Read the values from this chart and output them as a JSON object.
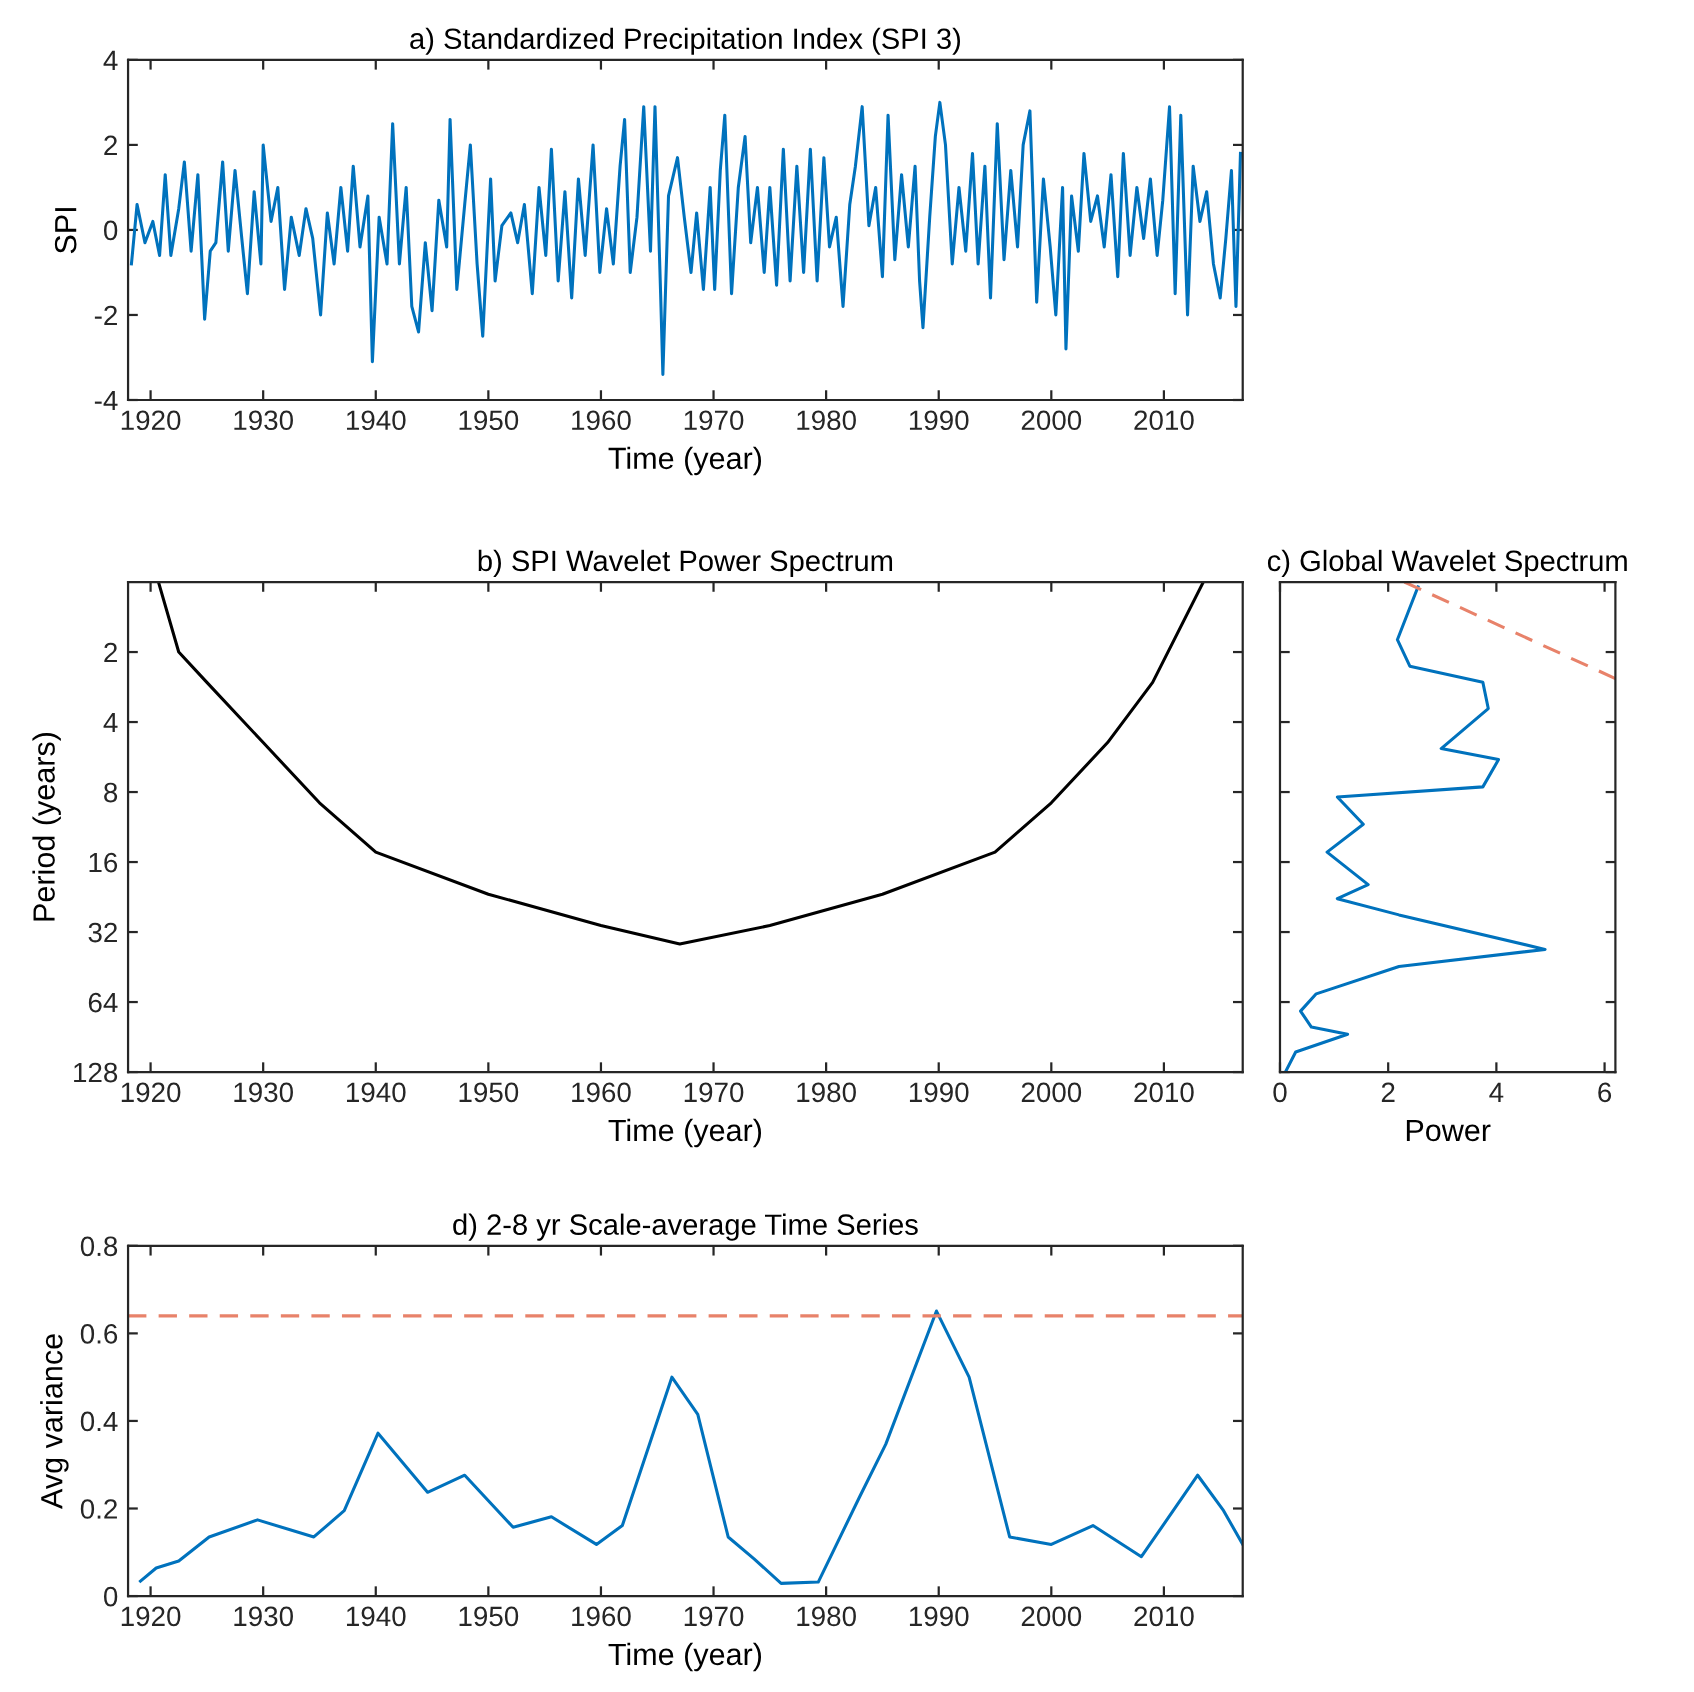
{
  "chart_data": [
    {
      "type": "line",
      "title": "a) Standardized Precipitation Index (SPI 3)",
      "xlabel": "Time (year)",
      "ylabel": "SPI",
      "xlim": [
        1918,
        2017
      ],
      "xticks": [
        1920,
        1930,
        1940,
        1950,
        1960,
        1970,
        1980,
        1990,
        2000,
        2010
      ],
      "ylim": [
        -4,
        4
      ],
      "yticks": [
        -4,
        -2,
        0,
        2,
        4
      ],
      "series": [
        {
          "color": "#0072bd",
          "x": [
            1918.3,
            1918.8,
            1919.5,
            1920.2,
            1920.8,
            1921.3,
            1921.8,
            1922.5,
            1923,
            1923.6,
            1924.2,
            1924.8,
            1925.3,
            1925.8,
            1926.4,
            1926.9,
            1927.5,
            1928.1,
            1928.6,
            1929.2,
            1929.8,
            1930,
            1930.7,
            1931.3,
            1931.9,
            1932.5,
            1933.2,
            1933.8,
            1934.4,
            1935.1,
            1935.7,
            1936.3,
            1936.9,
            1937.5,
            1938,
            1938.6,
            1939.3,
            1939.7,
            1940.3,
            1941,
            1941.5,
            1942.1,
            1942.7,
            1943.2,
            1943.8,
            1944.4,
            1945,
            1945.6,
            1946.3,
            1946.6,
            1947.2,
            1947.9,
            1948.4,
            1949,
            1949.5,
            1950.2,
            1950.6,
            1951.2,
            1952,
            1952.6,
            1953.2,
            1953.9,
            1954.5,
            1955.1,
            1955.6,
            1956.2,
            1956.8,
            1957.4,
            1958,
            1958.6,
            1959.3,
            1959.9,
            1960.5,
            1961.1,
            1961.7,
            1962.1,
            1962.6,
            1963.2,
            1963.8,
            1964.4,
            1964.8,
            1965.3,
            1965.5,
            1966,
            1966.8,
            1967.4,
            1968,
            1968.5,
            1969.1,
            1969.7,
            1970.1,
            1970.6,
            1971,
            1971.6,
            1972.2,
            1972.8,
            1973.3,
            1973.9,
            1974.5,
            1975,
            1975.6,
            1976.2,
            1976.8,
            1977.4,
            1978,
            1978.6,
            1979.2,
            1979.8,
            1980.3,
            1980.9,
            1981.5,
            1982.1,
            1982.6,
            1983.2,
            1983.8,
            1984.4,
            1985,
            1985.5,
            1986.1,
            1986.7,
            1987.3,
            1987.9,
            1988.3,
            1988.6,
            1989.2,
            1989.7,
            1990.1,
            1990.6,
            1991.2,
            1991.8,
            1992.4,
            1993,
            1993.5,
            1994.1,
            1994.6,
            1995.2,
            1995.8,
            1996.4,
            1997,
            1997.5,
            1998.1,
            1998.7,
            1999.3,
            1999.9,
            2000.4,
            2001,
            2001.3,
            2001.8,
            2002.4,
            2002.9,
            2003.5,
            2004.1,
            2004.7,
            2005.3,
            2005.9,
            2006.4,
            2007,
            2007.6,
            2008.2,
            2008.8,
            2009.4,
            2009.9,
            2010.5,
            2011,
            2011.5,
            2012.1,
            2012.6,
            2013.2,
            2013.8,
            2014.4,
            2015,
            2015.5,
            2016,
            2016.4,
            2016.8
          ],
          "values": [
            -0.8,
            0.6,
            -0.3,
            0.2,
            -0.6,
            1.3,
            -0.6,
            0.5,
            1.6,
            -0.5,
            1.3,
            -2.1,
            -0.5,
            -0.3,
            1.6,
            -0.5,
            1.4,
            -0.2,
            -1.5,
            0.9,
            -0.8,
            2.0,
            0.2,
            1.0,
            -1.4,
            0.3,
            -0.6,
            0.5,
            -0.2,
            -2.0,
            0.4,
            -0.8,
            1.0,
            -0.5,
            1.5,
            -0.4,
            0.8,
            -3.1,
            0.3,
            -0.8,
            2.5,
            -0.8,
            1.0,
            -1.8,
            -2.4,
            -0.3,
            -1.9,
            0.7,
            -0.4,
            2.6,
            -1.4,
            0.6,
            2.0,
            -0.8,
            -2.5,
            1.2,
            -1.2,
            0.1,
            0.4,
            -0.3,
            0.6,
            -1.5,
            1.0,
            -0.6,
            1.9,
            -1.2,
            0.9,
            -1.6,
            1.2,
            -0.6,
            2.0,
            -1.0,
            0.5,
            -0.8,
            1.5,
            2.6,
            -1.0,
            0.3,
            2.9,
            -0.5,
            2.9,
            -1.5,
            -3.4,
            0.8,
            1.7,
            0.3,
            -1.0,
            0.4,
            -1.4,
            1.0,
            -1.4,
            1.4,
            2.7,
            -1.5,
            1.0,
            2.2,
            -0.3,
            1.0,
            -1.0,
            1.0,
            -1.3,
            1.9,
            -1.2,
            1.5,
            -1.0,
            1.9,
            -1.2,
            1.7,
            -0.4,
            0.3,
            -1.8,
            0.6,
            1.5,
            2.9,
            0.1,
            1.0,
            -1.1,
            2.7,
            -0.7,
            1.3,
            -0.4,
            1.5,
            -1.2,
            -2.3,
            0.3,
            2.2,
            3.0,
            2.0,
            -0.8,
            1.0,
            -0.5,
            1.8,
            -0.8,
            1.5,
            -1.6,
            2.5,
            -0.7,
            1.4,
            -0.4,
            2.0,
            2.8,
            -1.7,
            1.2,
            -0.4,
            -2.0,
            1.0,
            -2.8,
            0.8,
            -0.5,
            1.8,
            0.2,
            0.8,
            -0.4,
            1.3,
            -1.1,
            1.8,
            -0.6,
            1.0,
            -0.2,
            1.2,
            -0.6,
            0.7,
            2.9,
            -1.5,
            2.7,
            -2.0,
            1.5,
            0.2,
            0.9,
            -0.8,
            -1.6,
            -0.2,
            1.4,
            -1.8,
            1.8
          ]
        }
      ]
    },
    {
      "type": "line",
      "title": "b) SPI Wavelet Power Spectrum",
      "xlabel": "Time (year)",
      "ylabel": "Period (years)",
      "xlim": [
        1918,
        2017
      ],
      "xticks": [
        1920,
        1930,
        1940,
        1950,
        1960,
        1970,
        1980,
        1990,
        2000,
        2010
      ],
      "log": "y",
      "ylim": [
        128,
        1
      ],
      "yticks": [
        2,
        4,
        8,
        16,
        32,
        64,
        128
      ],
      "series": [
        {
          "color": "#000000",
          "x": [
            1920.7,
            1922.5,
            1925,
            1930,
            1935,
            1940,
            1950,
            1960,
            1967,
            1975,
            1985,
            1995,
            2000,
            2005,
            2009,
            2013.5
          ],
          "values": [
            1,
            2,
            2.7,
            4.9,
            8.9,
            14.5,
            22,
            30,
            36,
            30,
            22,
            14.5,
            8.9,
            4.9,
            2.7,
            1
          ]
        }
      ]
    },
    {
      "type": "line",
      "title": "c) Global Wavelet Spectrum",
      "xlabel": "Power",
      "xlim": [
        0,
        6.2
      ],
      "xticks": [
        0,
        2,
        4,
        6
      ],
      "log": "y",
      "ylim": [
        128,
        1
      ],
      "yticks": [
        2,
        4,
        8,
        16,
        32,
        64,
        128
      ],
      "tick_labels": "x",
      "series": [
        {
          "color": "#0072bd",
          "x": [
            2.55,
            2.17,
            2.4,
            3.75,
            3.85,
            2.98,
            4.04,
            3.75,
            1.06,
            1.54,
            0.87,
            1.63,
            1.06,
            2.2,
            4.9,
            2.2,
            0.67,
            0.38,
            0.58,
            1.25,
            0.29,
            0.1
          ],
          "values": [
            1.05,
            1.77,
            2.3,
            2.7,
            3.5,
            5.2,
            5.8,
            7.6,
            8.4,
            11,
            14.5,
            20,
            23,
            27,
            38,
            45,
            59,
            70,
            82,
            88,
            105,
            128
          ]
        },
        {
          "color": "#e8826a",
          "line_style": "dashed",
          "x": [
            2.3,
            6.2
          ],
          "values": [
            1,
            2.6
          ]
        }
      ]
    },
    {
      "type": "line",
      "title": "d) 2-8 yr Scale-average Time Series",
      "xlabel": "Time (year)",
      "ylabel": "Avg variance",
      "xlim": [
        1918,
        2017
      ],
      "xticks": [
        1920,
        1930,
        1940,
        1950,
        1960,
        1970,
        1980,
        1990,
        2000,
        2010
      ],
      "ylim": [
        0,
        0.8
      ],
      "yticks": [
        0,
        0.2,
        0.4,
        0.6,
        0.8
      ],
      "ref_lines": [
        {
          "axis": "y",
          "value": 0.64,
          "color": "#e8826a",
          "line_style": "dashed"
        }
      ],
      "series": [
        {
          "color": "#0072bd",
          "x": [
            1919.1,
            1920.5,
            1922.5,
            1925.2,
            1929.5,
            1934.5,
            1937.2,
            1940.2,
            1944.6,
            1947.9,
            1952.2,
            1955.6,
            1959.6,
            1961.9,
            1966.3,
            1968.6,
            1971.3,
            1973.6,
            1976,
            1979.3,
            1983,
            1985.3,
            1989.8,
            1992.7,
            1996.3,
            2000,
            2003.7,
            2008,
            2013,
            2015.3,
            2017
          ],
          "values": [
            0.034,
            0.064,
            0.08,
            0.135,
            0.174,
            0.135,
            0.195,
            0.372,
            0.237,
            0.276,
            0.157,
            0.181,
            0.118,
            0.161,
            0.5,
            0.415,
            0.135,
            0.085,
            0.029,
            0.032,
            0.228,
            0.347,
            0.651,
            0.5,
            0.135,
            0.118,
            0.161,
            0.09,
            0.276,
            0.195,
            0.118
          ]
        }
      ]
    }
  ]
}
